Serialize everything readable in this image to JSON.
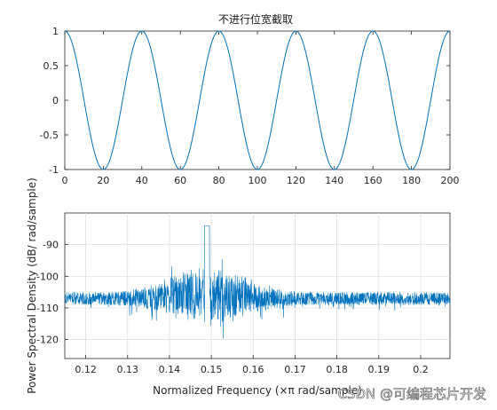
{
  "chart_data": [
    {
      "type": "line",
      "title": "不进行位宽截取",
      "xlabel": "",
      "ylabel": "",
      "xlim": [
        0,
        200
      ],
      "ylim": [
        -1,
        1
      ],
      "x_ticks": [
        "0",
        "20",
        "40",
        "60",
        "80",
        "100",
        "120",
        "140",
        "160",
        "180",
        "200"
      ],
      "y_ticks": [
        "1",
        "0.5",
        "0",
        "-0.5",
        "-1"
      ],
      "grid": false,
      "series": [
        {
          "function": "cos",
          "period": 40,
          "amplitude": 1,
          "x_start": 0,
          "x_end": 200,
          "color": "#0072bd"
        }
      ]
    },
    {
      "type": "line",
      "title": "",
      "xlabel": "Normalized Frequency  (×π rad/sample)",
      "ylabel": "Power Spectral Density (dB/ rad/sample)",
      "xlim": [
        0.115,
        0.207
      ],
      "ylim": [
        -126,
        -80
      ],
      "x_ticks": [
        "0.12",
        "0.13",
        "0.14",
        "0.15",
        "0.16",
        "0.17",
        "0.18",
        "0.19",
        "0.2"
      ],
      "y_ticks": [
        "-90",
        "-100",
        "-110",
        "-120"
      ],
      "grid": true,
      "series": [
        {
          "description": "noisy spectrum",
          "baseline_db": -107,
          "peak_frequency": 0.149,
          "peak_db": -84,
          "min_db": -122,
          "color": "#0072bd"
        }
      ]
    }
  ],
  "watermark": "CSDN @可编程芯片开发"
}
